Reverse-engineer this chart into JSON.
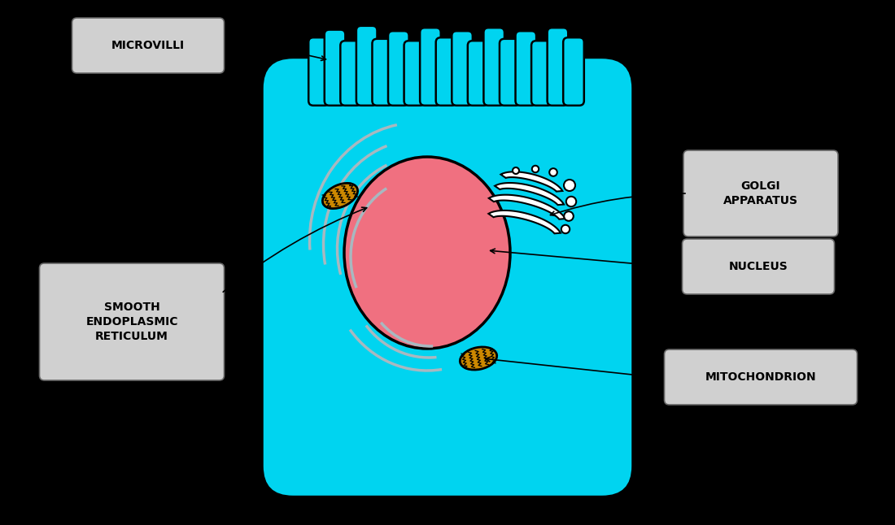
{
  "bg_color": "#000000",
  "cell_color": "#00d4f0",
  "cell_outline": "#000000",
  "nucleus_fill": "#f07080",
  "nucleus_outline": "#000000",
  "er_color": "#a8b8c0",
  "golgi_color": "#ffffff",
  "mito_fill": "#cc8800",
  "mito_outline": "#000000",
  "label_box_color": "#d0d0d0",
  "label_text_color": "#000000",
  "label_font_size": 10,
  "labels": {
    "microvilli": "MICROVILLI",
    "golgi": "GOLGI\nAPPARATUS",
    "nucleus": "NUCLEUS",
    "smooth_er": "SMOOTH\nENDOPLASMIC\nRETICULUM",
    "mitochondrion": "MITOCHONDRION"
  },
  "figsize": [
    11.0,
    6.46
  ],
  "dpi": 100
}
